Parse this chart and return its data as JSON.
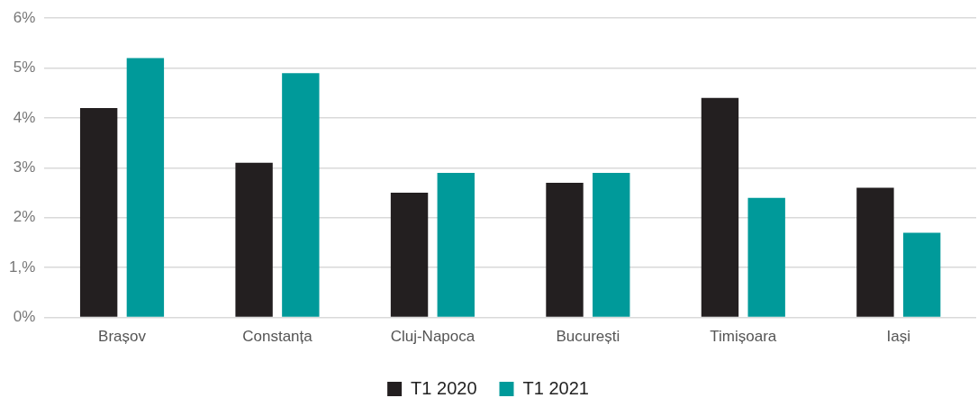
{
  "chart_data": {
    "type": "bar",
    "categories": [
      "Brașov",
      "Constanța",
      "Cluj-Napoca",
      "București",
      "Timișoara",
      "Iași"
    ],
    "series": [
      {
        "name": "T1 2020",
        "color": "#231f20",
        "values": [
          4.2,
          3.1,
          2.5,
          2.7,
          4.4,
          2.6
        ]
      },
      {
        "name": "T1 2021",
        "color": "#009a9a",
        "values": [
          5.2,
          4.9,
          2.9,
          2.9,
          2.4,
          1.7
        ]
      }
    ],
    "ylim": [
      0,
      6
    ],
    "yticks": [
      {
        "value": 0,
        "label": "0%"
      },
      {
        "value": 1,
        "label": "1,%"
      },
      {
        "value": 2,
        "label": "2%"
      },
      {
        "value": 3,
        "label": "3%"
      },
      {
        "value": 4,
        "label": "4%"
      },
      {
        "value": 5,
        "label": "5%"
      },
      {
        "value": 6,
        "label": "6%"
      }
    ],
    "grid": "y",
    "legend": "bottom"
  }
}
